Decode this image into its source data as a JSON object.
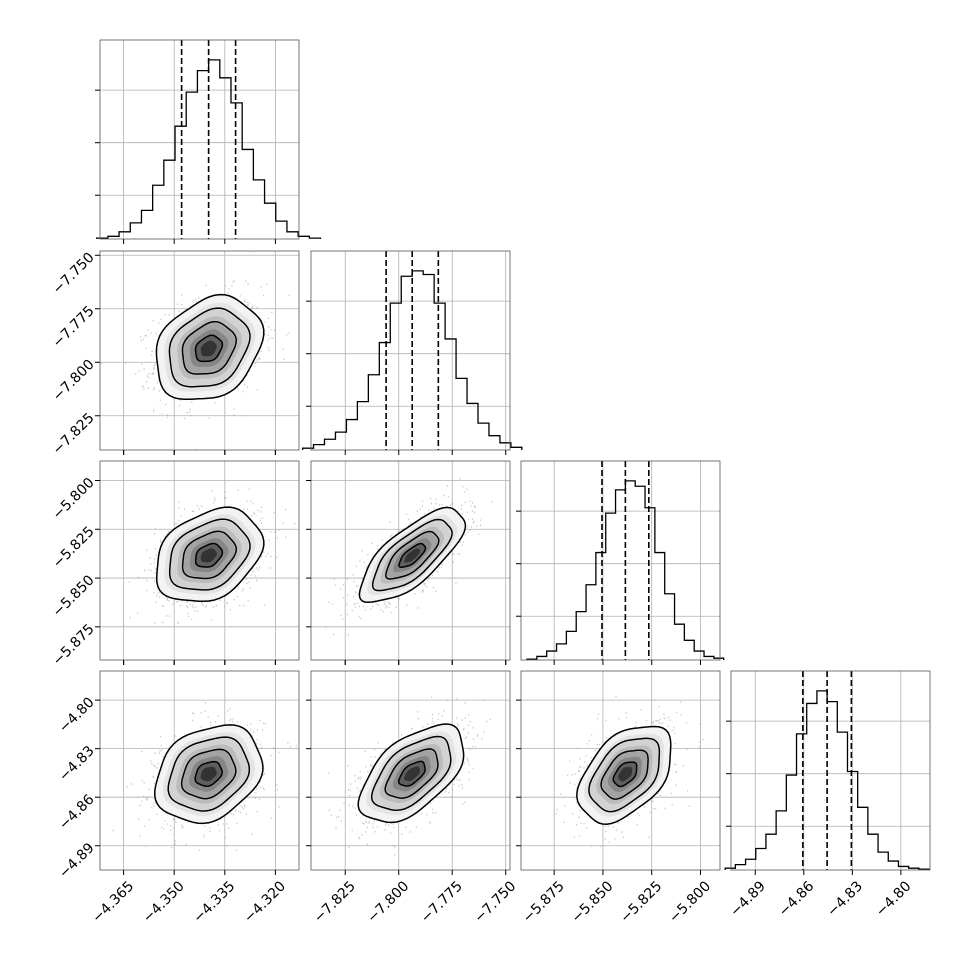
{
  "chart_data": {
    "type": "corner",
    "grid": true,
    "parameters": [
      {
        "range": [
          -4.372,
          -4.313
        ],
        "ticks": [
          -4.365,
          -4.35,
          -4.335,
          -4.32
        ],
        "tick_labels": [
          "−4.365",
          "−4.350",
          "−4.335",
          "−4.320"
        ],
        "quantiles": [
          -4.3478,
          -4.3398,
          -4.3318
        ],
        "hist_y": [
          0.005,
          0.015,
          0.04,
          0.09,
          0.16,
          0.3,
          0.44,
          0.63,
          0.82,
          0.94,
          1.0,
          0.9,
          0.76,
          0.5,
          0.33,
          0.2,
          0.1,
          0.04,
          0.015,
          0.005
        ],
        "center": -4.3398,
        "sigma": 0.0079
      },
      {
        "range": [
          -7.841,
          -7.748
        ],
        "ticks": [
          -7.825,
          -7.8,
          -7.775,
          -7.75
        ],
        "tick_labels": [
          "−7.825",
          "−7.800",
          "−7.775",
          "−7.750"
        ],
        "quantiles": [
          -7.8059,
          -7.7937,
          -7.7815
        ],
        "hist_y": [
          0.01,
          0.03,
          0.06,
          0.1,
          0.17,
          0.27,
          0.42,
          0.6,
          0.82,
          0.97,
          1.0,
          0.98,
          0.82,
          0.62,
          0.4,
          0.26,
          0.15,
          0.08,
          0.04,
          0.015
        ],
        "center": -7.7937,
        "sigma": 0.0122
      },
      {
        "range": [
          -5.892,
          -5.79
        ],
        "ticks": [
          -5.875,
          -5.85,
          -5.825,
          -5.8
        ],
        "tick_labels": [
          "−5.875",
          "−5.850",
          "−5.825",
          "−5.800"
        ],
        "quantiles": [
          -5.8505,
          -5.8385,
          -5.8265
        ],
        "hist_y": [
          0.005,
          0.02,
          0.05,
          0.09,
          0.16,
          0.27,
          0.42,
          0.6,
          0.82,
          0.95,
          1.0,
          0.97,
          0.85,
          0.6,
          0.37,
          0.2,
          0.11,
          0.05,
          0.02,
          0.01
        ],
        "center": -5.8385,
        "sigma": 0.012
      },
      {
        "range": [
          -4.905,
          -4.782
        ],
        "ticks": [
          -4.89,
          -4.86,
          -4.83,
          -4.8
        ],
        "tick_labels": [
          "−4.89",
          "−4.86",
          "−4.83",
          "−4.80"
        ],
        "quantiles": [
          -4.8606,
          -4.8456,
          -4.8306
        ],
        "hist_y": [
          0.01,
          0.03,
          0.06,
          0.12,
          0.2,
          0.33,
          0.53,
          0.76,
          0.93,
          1.0,
          0.94,
          0.77,
          0.55,
          0.35,
          0.2,
          0.1,
          0.05,
          0.02,
          0.01,
          0.005
        ],
        "center": -4.8456,
        "sigma": 0.015
      }
    ],
    "correlations": [
      [
        1.0,
        0.25,
        0.3,
        0.25
      ],
      [
        0.25,
        1.0,
        0.72,
        0.55
      ],
      [
        0.3,
        0.72,
        1.0,
        0.45
      ],
      [
        0.25,
        0.55,
        0.45,
        1.0
      ]
    ],
    "contour_levels_sigma": [
      0.5,
      1.0,
      1.5,
      2.0
    ],
    "colors": {
      "line": "#000000",
      "grid": "#b0b0b0",
      "scatter": "#9a9a9a",
      "panel_border": "#555555"
    }
  }
}
